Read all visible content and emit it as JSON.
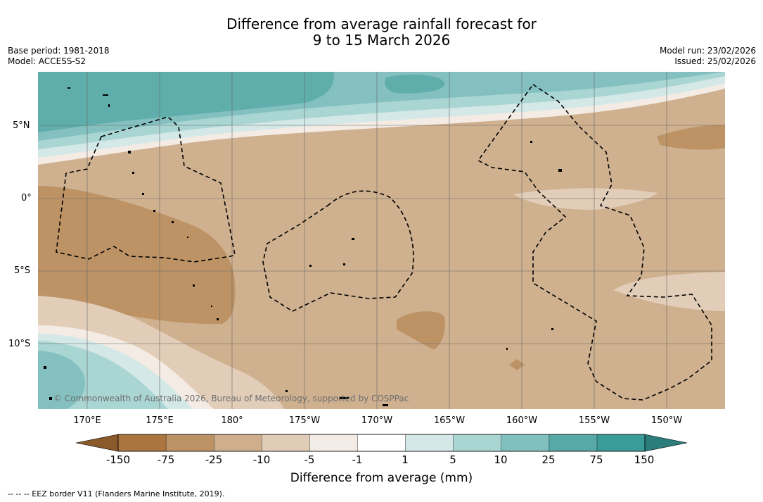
{
  "title": {
    "line1": "Difference from average rainfall forecast for",
    "line2": "9 to 15 March 2026"
  },
  "meta_left": {
    "base_period": "Base period: 1981-2018",
    "model": "Model: ACCESS-S2"
  },
  "meta_right": {
    "model_run": "Model run: 23/02/2026",
    "issued": "Issued: 25/02/2026"
  },
  "map": {
    "lat_labels": [
      "5°N",
      "0°",
      "5°S",
      "10°S"
    ],
    "lon_labels": [
      "170°E",
      "175°E",
      "180°",
      "175°W",
      "170°W",
      "165°W",
      "160°W",
      "155°W",
      "150°W"
    ],
    "copyright": "© Commonwealth of Australia 2026, Bureau of Meteorology, supported by COSPPac"
  },
  "colorbar": {
    "labels": [
      "-150",
      "-75",
      "-25",
      "-10",
      "-5",
      "-1",
      "1",
      "5",
      "10",
      "25",
      "75",
      "150"
    ],
    "colors": [
      "#ab7540",
      "#bd9265",
      "#cfae8c",
      "#e0cdb8",
      "#f3ebe5",
      "#ffffff",
      "#d4e8e7",
      "#a9d5d3",
      "#80c0bf",
      "#57a8a7",
      "#3a9b99"
    ],
    "extend_low_color": "#8b5a2b",
    "extend_high_color": "#2a7d7b",
    "title": "Difference from average (mm)"
  },
  "footnote": "-- -- -- EEZ border V11 (Flanders Marine Institute, 2019).",
  "palette": {
    "base_tan": "#cfb08f",
    "dark_tan": "#bd9366",
    "light_tan": "#e2cdb9",
    "cream": "#f3ebe4",
    "pale_teal": "#d3e8e7",
    "light_teal": "#a9d5d3",
    "mid_teal": "#83c0bf",
    "teal": "#5faeac"
  }
}
